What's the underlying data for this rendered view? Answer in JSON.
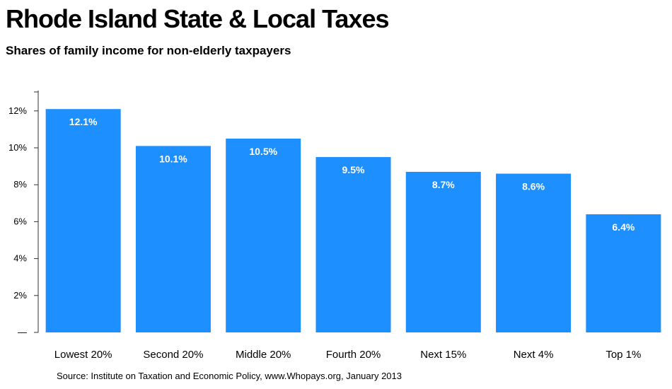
{
  "title": "Rhode Island State & Local Taxes",
  "subtitle": "Shares of family income for non-elderly taxpayers",
  "source": "Source: Institute on Taxation and Economic Policy, www.Whopays.org, January 2013",
  "colors": {
    "bar": "#1e8fff",
    "axis": "#333333"
  },
  "chart_data": {
    "type": "bar",
    "categories": [
      "Lowest 20%",
      "Second 20%",
      "Middle 20%",
      "Fourth 20%",
      "Next 15%",
      "Next 4%",
      "Top 1%"
    ],
    "values": [
      12.1,
      10.1,
      10.5,
      9.5,
      8.7,
      8.6,
      6.4
    ],
    "data_labels": [
      "12.1%",
      "10.1%",
      "10.5%",
      "9.5%",
      "8.7%",
      "8.6%",
      "6.4%"
    ],
    "yticks": [
      0,
      2,
      4,
      6,
      8,
      10,
      12
    ],
    "ytick_labels": [
      "—",
      "2%",
      "4%",
      "6%",
      "8%",
      "10%",
      "12%"
    ],
    "ylim": [
      0,
      13
    ],
    "title": "Rhode Island State & Local Taxes",
    "xlabel": "",
    "ylabel": "",
    "grid": false
  }
}
